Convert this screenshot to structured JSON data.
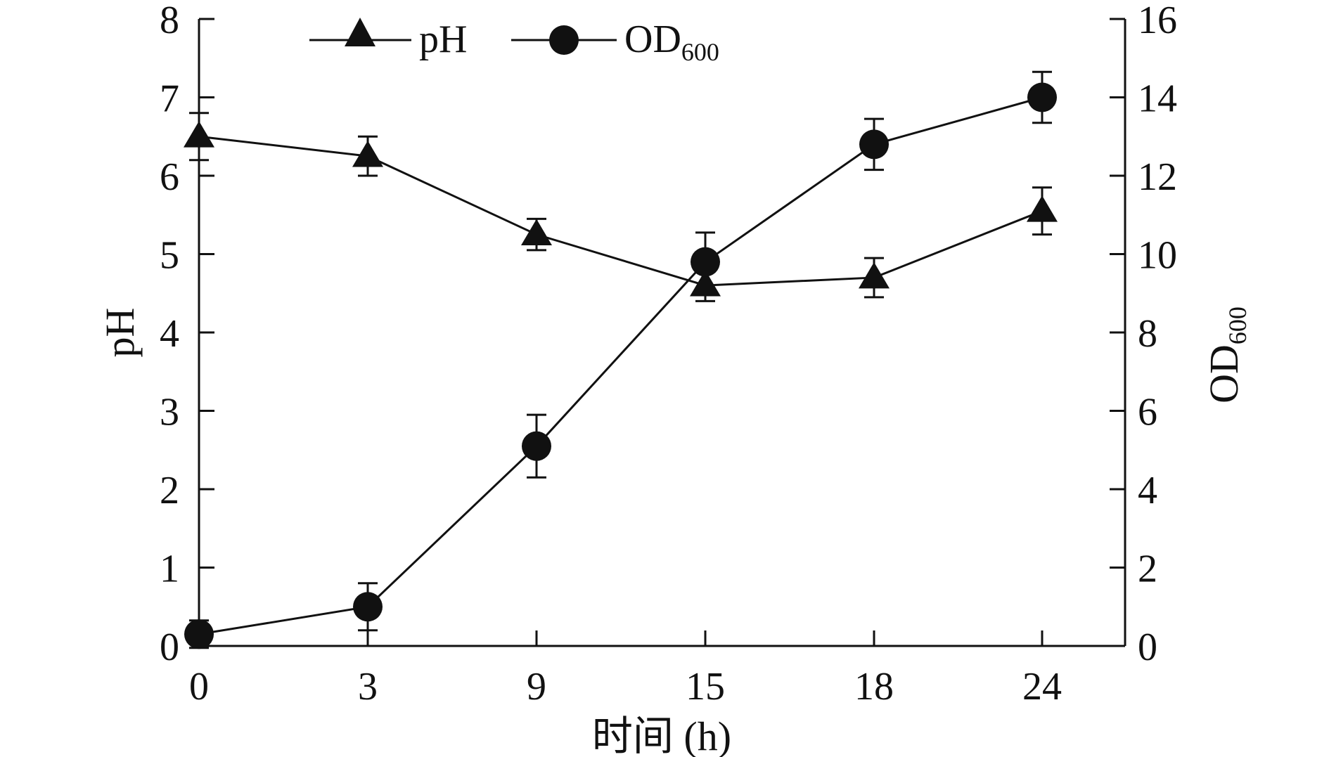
{
  "chart_data": {
    "type": "line",
    "xlabel": "时间 (h)",
    "ylabel_left": "pH",
    "ylabel_right": {
      "main": "OD",
      "sub": "600"
    },
    "categories": [
      "0",
      "3",
      "9",
      "15",
      "18",
      "24"
    ],
    "y_left_lim": [
      0,
      8
    ],
    "y_left_ticks": [
      "0",
      "1",
      "2",
      "3",
      "4",
      "5",
      "6",
      "7",
      "8"
    ],
    "y_right_lim": [
      0,
      16
    ],
    "y_right_ticks": [
      "0",
      "2",
      "4",
      "6",
      "8",
      "10",
      "12",
      "14",
      "16"
    ],
    "legend": {
      "placement": "top",
      "entries": [
        {
          "label": "pH",
          "marker": "triangle"
        },
        {
          "label_main": "OD",
          "label_sub": "600",
          "marker": "circle"
        }
      ]
    },
    "series": [
      {
        "name": "pH",
        "axis": "left",
        "marker": "triangle",
        "values": [
          6.5,
          6.25,
          5.25,
          4.6,
          4.7,
          5.55
        ],
        "errors": [
          0.3,
          0.25,
          0.2,
          0.2,
          0.25,
          0.3
        ]
      },
      {
        "name": "OD600",
        "axis": "right",
        "marker": "circle",
        "values": [
          0.3,
          1.0,
          5.1,
          9.8,
          12.8,
          14.0
        ],
        "errors": [
          0.35,
          0.6,
          0.8,
          0.75,
          0.65,
          0.65
        ]
      }
    ],
    "grid": false,
    "colors": {
      "ink": "#111111",
      "background": "#ffffff"
    }
  }
}
